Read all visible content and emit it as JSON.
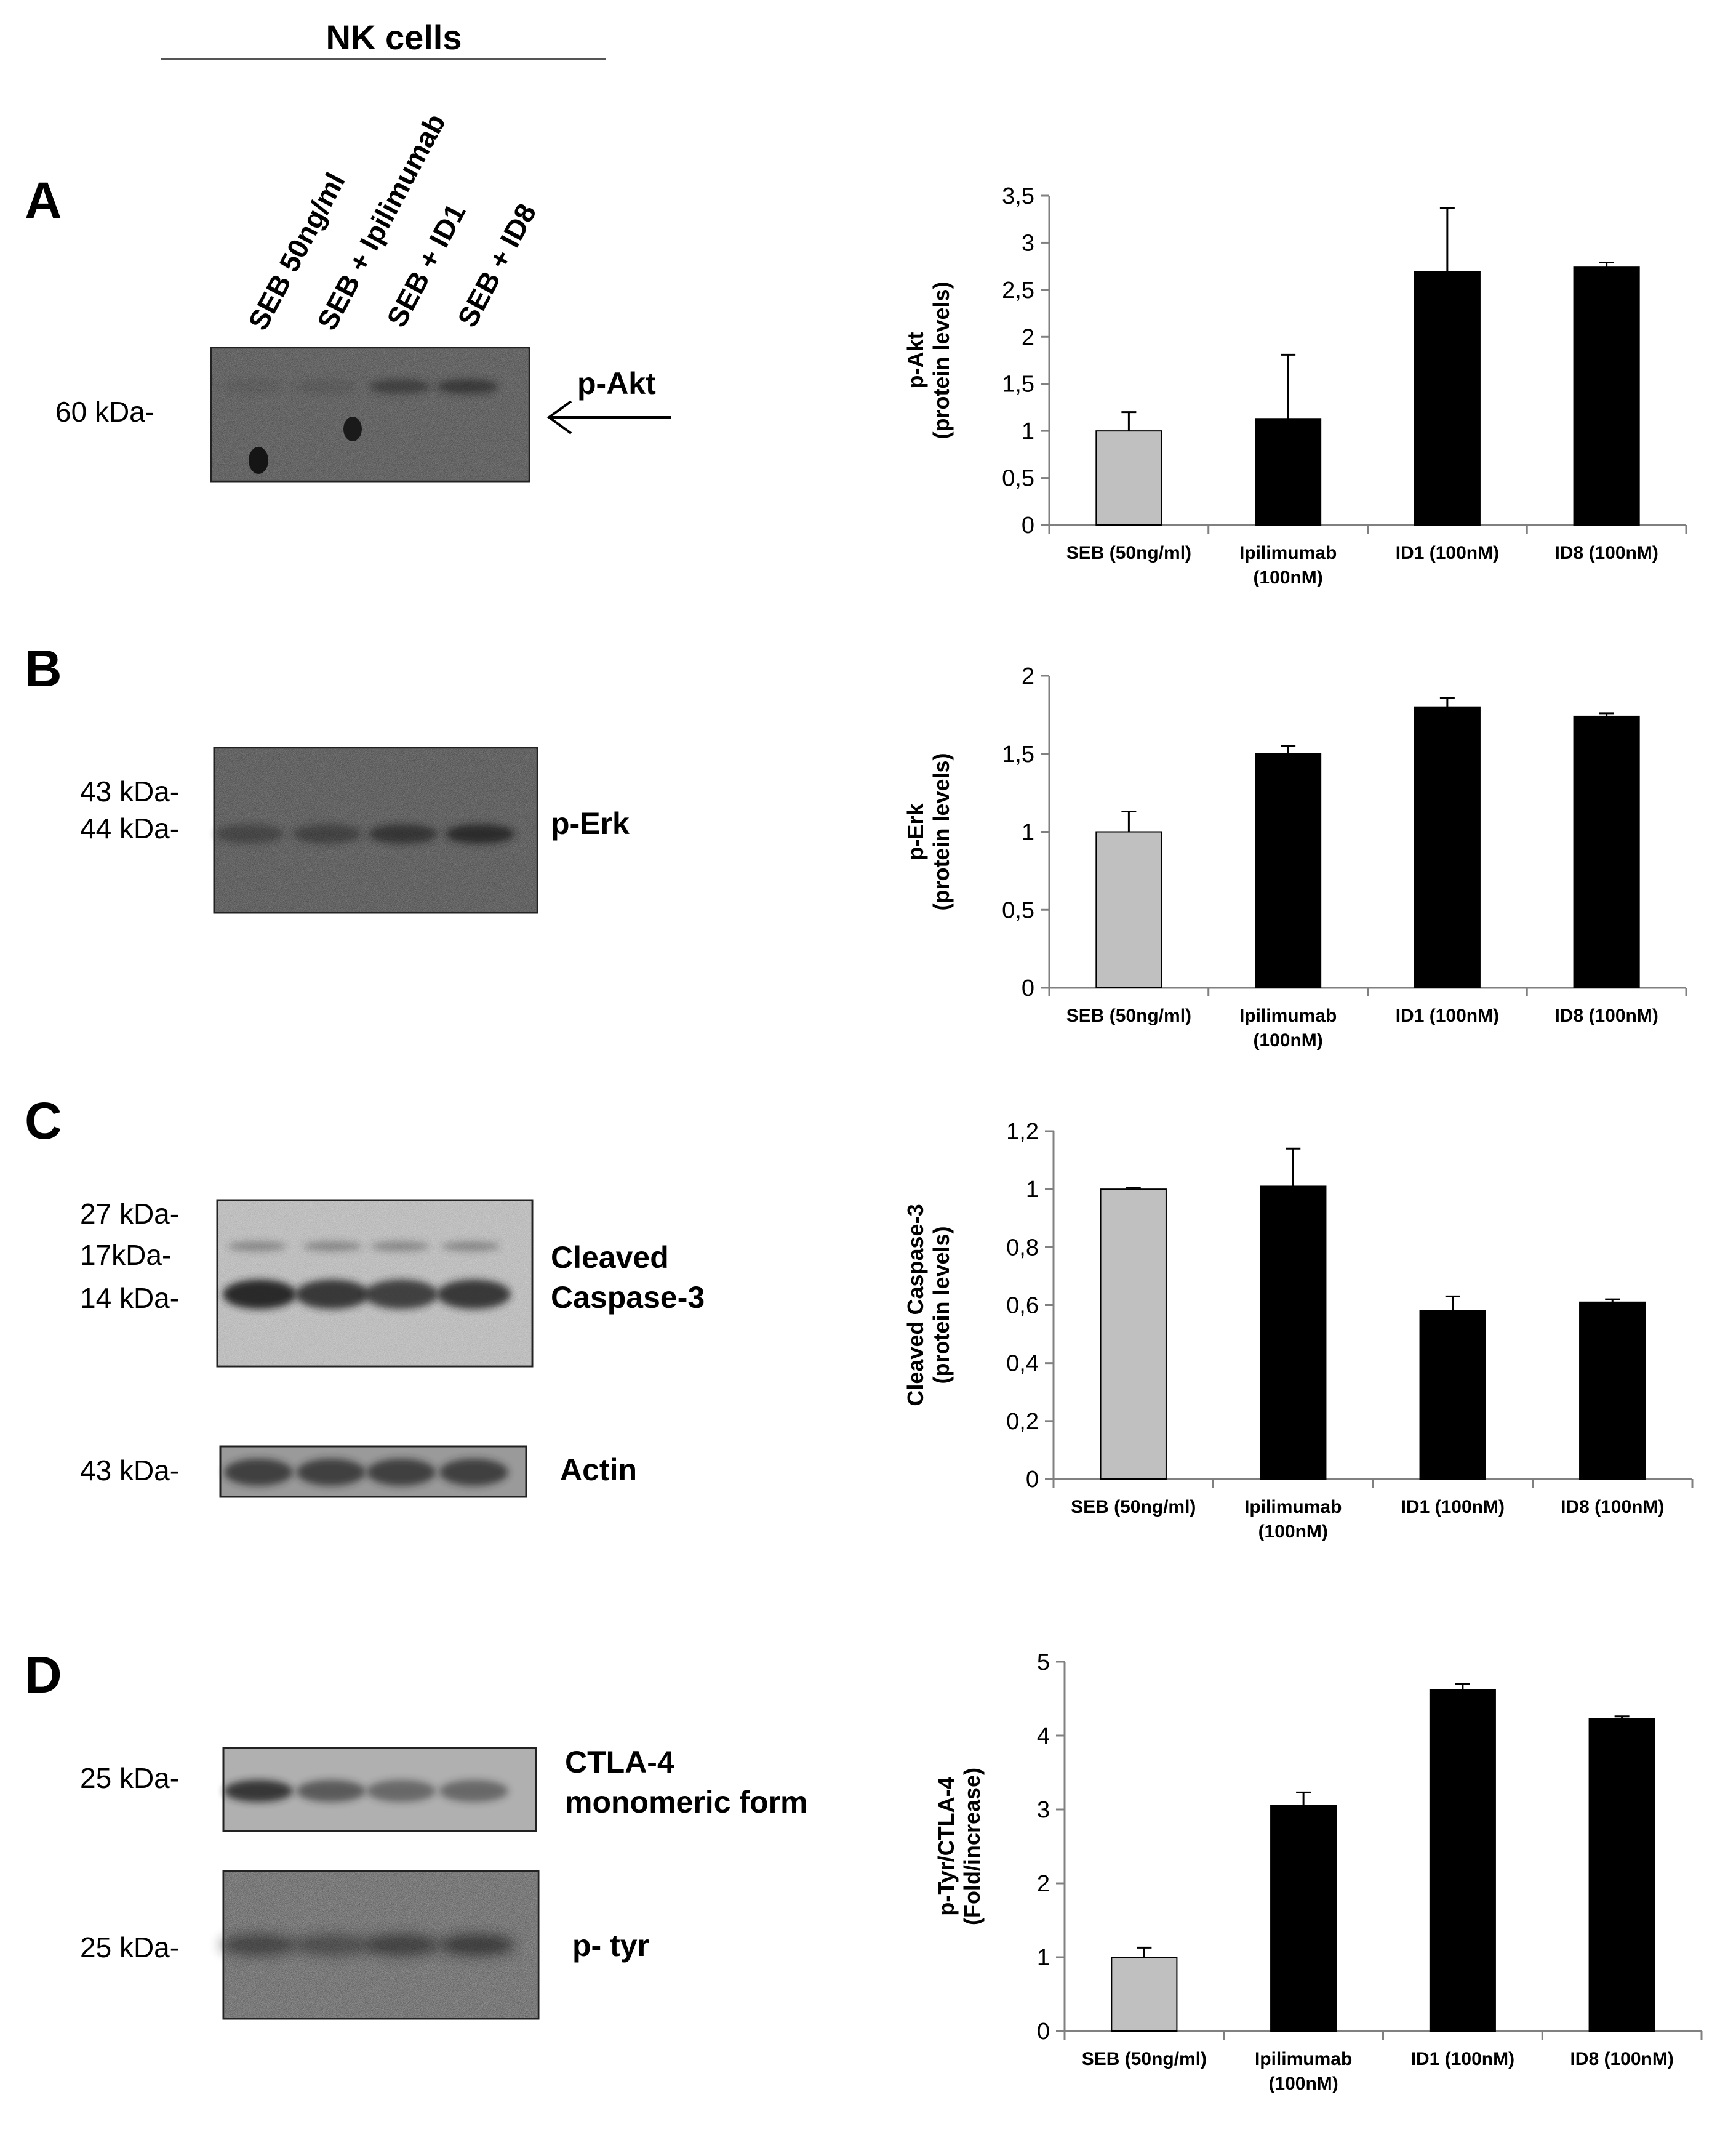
{
  "header": {
    "title": "NK cells",
    "lanes": [
      "SEB 50ng/ml",
      "SEB + Ipilimumab",
      "SEB + ID1",
      "SEB + ID8"
    ]
  },
  "colors": {
    "control_bar": "#c0c0c0",
    "treatment_bar": "#000000",
    "blot_background": "#8a8a8a",
    "band": "#202020"
  },
  "blots": {
    "A": {
      "panel_letter": "A",
      "main": {
        "marker": "60 kDa-",
        "target_label": "p-Akt",
        "band_strength": [
          0.1,
          0.15,
          0.55,
          0.65
        ]
      }
    },
    "B": {
      "panel_letter": "B",
      "main": {
        "markers": [
          "43 kDa-",
          "44 kDa-"
        ],
        "target_label": "p-Erk",
        "band_strength": [
          0.45,
          0.5,
          0.7,
          0.85
        ]
      }
    },
    "C": {
      "panel_letter": "C",
      "main": {
        "markers": [
          "27 kDa-",
          "17kDa-",
          "14 kDa-"
        ],
        "target_label_lines": [
          "Cleaved",
          "Caspase-3"
        ],
        "band_strength": [
          0.95,
          0.85,
          0.8,
          0.85
        ]
      },
      "loading": {
        "marker": "43 kDa-",
        "target_label": "Actin",
        "band_strength": [
          0.75,
          0.75,
          0.75,
          0.75
        ]
      }
    },
    "D": {
      "panel_letter": "D",
      "main": {
        "marker": "25 kDa-",
        "target_label_lines": [
          "CTLA-4",
          "monomeric form"
        ],
        "band_strength": [
          0.85,
          0.6,
          0.5,
          0.5
        ]
      },
      "secondary": {
        "marker": "25 kDa-",
        "target_label": "p- tyr",
        "band_strength": [
          0.6,
          0.5,
          0.65,
          0.7
        ]
      }
    }
  },
  "chart_data": [
    {
      "type": "bar",
      "panel": "A",
      "ylabel_lines": [
        "p-Akt",
        "(protein levels)"
      ],
      "categories": [
        [
          "SEB (50ng/ml)"
        ],
        [
          "Ipilimumab",
          "(100nM)"
        ],
        [
          "ID1 (100nM)"
        ],
        [
          "ID8 (100nM)"
        ]
      ],
      "values": [
        1.0,
        1.13,
        2.69,
        2.74
      ],
      "errors": [
        0.2,
        0.68,
        0.68,
        0.05
      ],
      "ylim": [
        0,
        3.5
      ],
      "yticks": [
        0,
        0.5,
        1,
        1.5,
        2,
        2.5,
        3,
        3.5
      ],
      "ytick_labels": [
        "0",
        "0,5",
        "1",
        "1,5",
        "2",
        "2,5",
        "3",
        "3,5"
      ]
    },
    {
      "type": "bar",
      "panel": "B",
      "ylabel_lines": [
        "p-Erk",
        "(protein levels)"
      ],
      "categories": [
        [
          "SEB (50ng/ml)"
        ],
        [
          "Ipilimumab",
          "(100nM)"
        ],
        [
          "ID1 (100nM)"
        ],
        [
          "ID8 (100nM)"
        ]
      ],
      "values": [
        1.0,
        1.5,
        1.8,
        1.74
      ],
      "errors": [
        0.13,
        0.05,
        0.06,
        0.02
      ],
      "ylim": [
        0,
        2
      ],
      "yticks": [
        0,
        0.5,
        1,
        1.5,
        2
      ],
      "ytick_labels": [
        "0",
        "0,5",
        "1",
        "1,5",
        "2"
      ]
    },
    {
      "type": "bar",
      "panel": "C",
      "ylabel_lines": [
        "Cleaved Caspase-3",
        "(protein levels)"
      ],
      "categories": [
        [
          "SEB (50ng/ml)"
        ],
        [
          "Ipilimumab",
          "(100nM)"
        ],
        [
          "ID1 (100nM)"
        ],
        [
          "ID8 (100nM)"
        ]
      ],
      "values": [
        1.0,
        1.01,
        0.58,
        0.61
      ],
      "errors": [
        0.005,
        0.13,
        0.05,
        0.01
      ],
      "ylim": [
        0,
        1.2
      ],
      "yticks": [
        0,
        0.2,
        0.4,
        0.6,
        0.8,
        1.0,
        1.2
      ],
      "ytick_labels": [
        "0",
        "0,2",
        "0,4",
        "0,6",
        "0,8",
        "1",
        "1,2"
      ]
    },
    {
      "type": "bar",
      "panel": "D",
      "ylabel_lines": [
        "p-Tyr/CTLA-4",
        "(Fold/increase)"
      ],
      "categories": [
        [
          "SEB (50ng/ml)"
        ],
        [
          "Ipilimumab",
          "(100nM)"
        ],
        [
          "ID1 (100nM)"
        ],
        [
          "ID8 (100nM)"
        ]
      ],
      "values": [
        1.0,
        3.05,
        4.62,
        4.23
      ],
      "errors": [
        0.13,
        0.18,
        0.08,
        0.03
      ],
      "ylim": [
        0,
        5
      ],
      "yticks": [
        0,
        1,
        2,
        3,
        4,
        5
      ],
      "ytick_labels": [
        "0",
        "1",
        "2",
        "3",
        "4",
        "5"
      ]
    }
  ]
}
